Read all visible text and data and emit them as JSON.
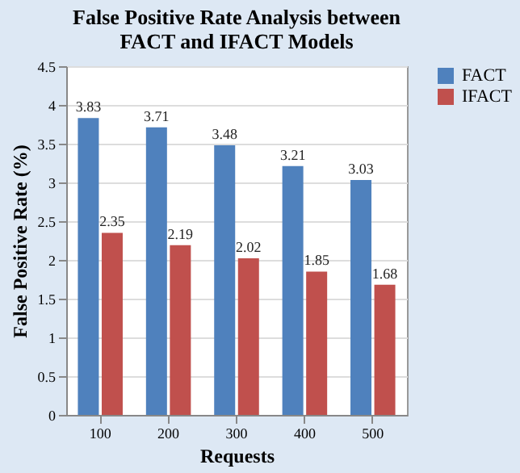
{
  "chart_data": {
    "type": "bar",
    "title": "False Positive Rate Analysis between FACT and IFACT Models",
    "xlabel": "Requests",
    "ylabel": "False Positive Rate (%)",
    "categories": [
      "100",
      "200",
      "300",
      "400",
      "500"
    ],
    "series": [
      {
        "name": "FACT",
        "color": "#4f81bd",
        "values": [
          3.83,
          3.71,
          3.48,
          3.21,
          3.03
        ]
      },
      {
        "name": "IFACT",
        "color": "#c0504d",
        "values": [
          2.35,
          2.19,
          2.02,
          1.85,
          1.68
        ]
      }
    ],
    "ylim": [
      0,
      4.5
    ],
    "yticks": [
      0,
      0.5,
      1,
      1.5,
      2,
      2.5,
      3,
      3.5,
      4,
      4.5
    ],
    "grid": "y",
    "legend": "right",
    "data_labels": true
  }
}
